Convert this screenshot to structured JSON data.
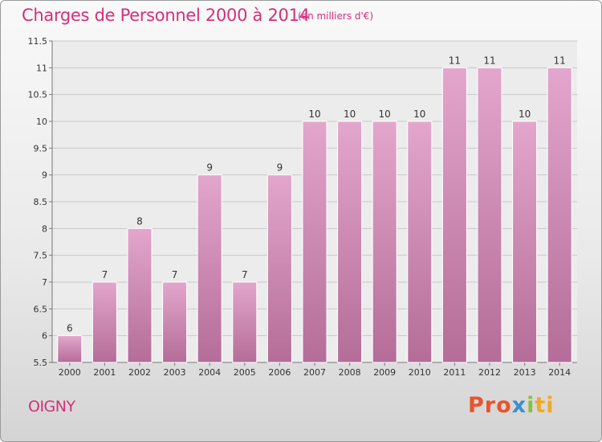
{
  "header": {
    "title": "Charges de Personnel 2000 à 2014",
    "subtitle": "(en milliers d'€)"
  },
  "footer": {
    "commune": "OIGNY",
    "brand": {
      "part1": "Pro",
      "part2": "x",
      "part3": "i",
      "part4": "ti"
    }
  },
  "colors": {
    "bar_top": "#e3a6cc",
    "bar_bottom": "#b46d98",
    "title": "#d4307a"
  },
  "chart_data": {
    "type": "bar",
    "categories": [
      "2000",
      "2001",
      "2002",
      "2003",
      "2004",
      "2005",
      "2006",
      "2007",
      "2008",
      "2009",
      "2010",
      "2011",
      "2012",
      "2013",
      "2014"
    ],
    "values": [
      6,
      7,
      8,
      7,
      9,
      7,
      9,
      10,
      10,
      10,
      10,
      11,
      11,
      10,
      11
    ],
    "ylim": [
      5.5,
      11.5
    ],
    "yticks": [
      5.5,
      6,
      6.5,
      7,
      7.5,
      8,
      8.5,
      9,
      9.5,
      10,
      10.5,
      11,
      11.5
    ],
    "grid": true,
    "legend": "none"
  }
}
